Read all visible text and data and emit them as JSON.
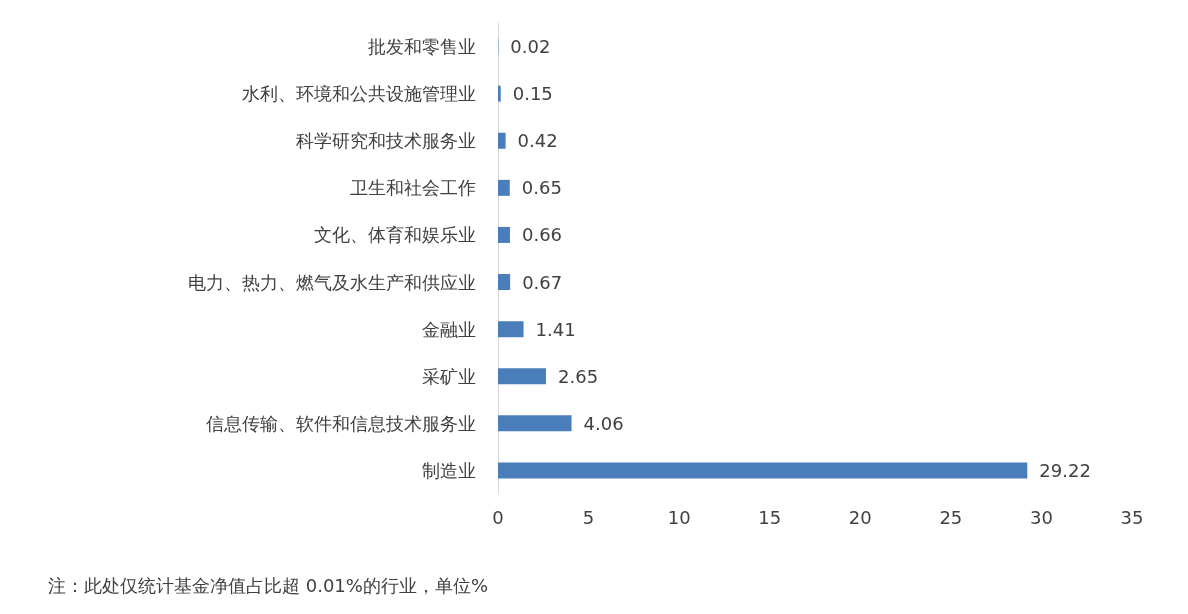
{
  "chart_data": {
    "type": "bar",
    "orientation": "horizontal",
    "categories": [
      "批发和零售业",
      "水利、环境和公共设施管理业",
      "科学研究和技术服务业",
      "卫生和社会工作",
      "文化、体育和娱乐业",
      "电力、热力、燃气及水生产和供应业",
      "金融业",
      "采矿业",
      "信息传输、软件和信息技术服务业",
      "制造业"
    ],
    "values": [
      0.02,
      0.15,
      0.42,
      0.65,
      0.66,
      0.67,
      1.41,
      2.65,
      4.06,
      29.22
    ],
    "color": "#4a7ebb",
    "data_labels": true,
    "grid": false,
    "xlim": [
      0,
      35
    ],
    "xticks": [
      0,
      5,
      10,
      15,
      20,
      25,
      30,
      35
    ],
    "annotations": [
      "注：此处仅统计基金净值占比超 0.01%的行业，单位%"
    ]
  }
}
